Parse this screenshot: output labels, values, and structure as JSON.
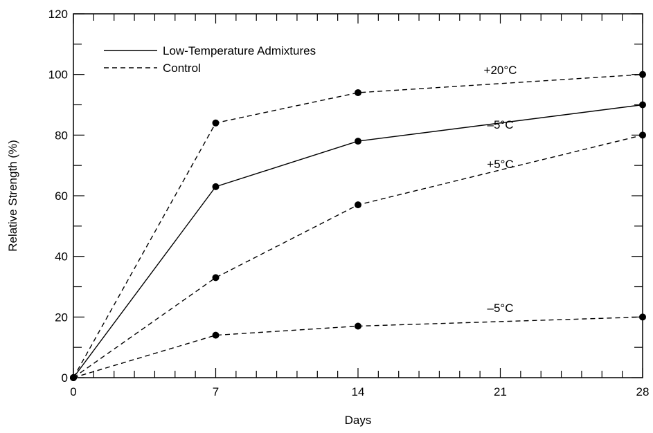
{
  "chart_data": {
    "type": "line",
    "xlabel": "Days",
    "ylabel": "Relative Strength (%)",
    "xlim": [
      0,
      28
    ],
    "ylim": [
      0,
      120
    ],
    "x_ticks": [
      0,
      7,
      14,
      21,
      28
    ],
    "y_ticks": [
      0,
      20,
      40,
      60,
      80,
      100,
      120
    ],
    "legend_position": "top-left",
    "legend": [
      {
        "label": "Low-Temperature Admixtures",
        "style": "solid"
      },
      {
        "label": "Control",
        "style": "dashed"
      }
    ],
    "series": [
      {
        "label": "+20°C",
        "style": "dashed",
        "x": [
          0,
          7,
          14,
          28
        ],
        "values": [
          0,
          84,
          94,
          100
        ]
      },
      {
        "label": "–5°C",
        "style": "solid",
        "x": [
          0,
          7,
          14,
          28
        ],
        "values": [
          0,
          63,
          78,
          90
        ]
      },
      {
        "label": "+5°C",
        "style": "dashed",
        "x": [
          0,
          7,
          14,
          28
        ],
        "values": [
          0,
          33,
          57,
          80
        ]
      },
      {
        "label": "–5°C",
        "style": "dashed",
        "x": [
          0,
          7,
          14,
          28
        ],
        "values": [
          0,
          14,
          17,
          20
        ]
      }
    ]
  }
}
